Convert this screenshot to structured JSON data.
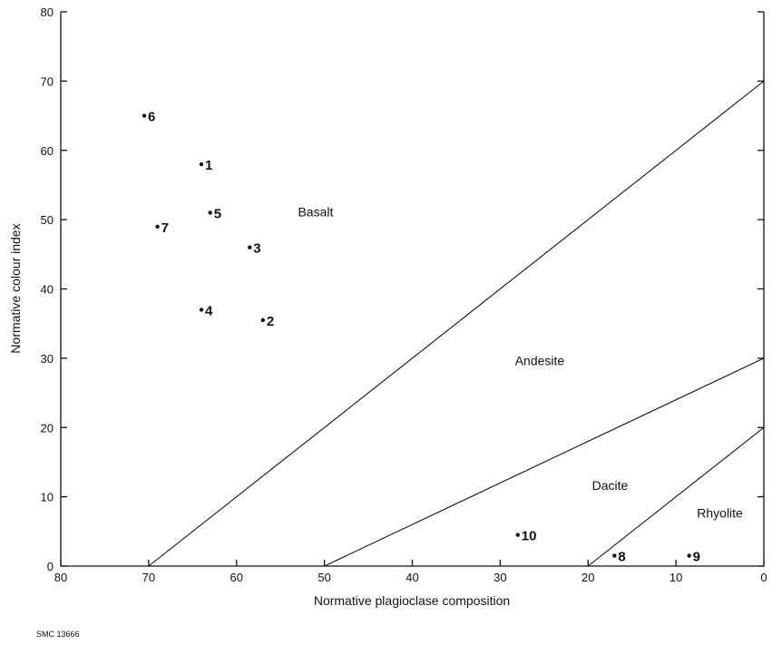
{
  "chart_data": {
    "type": "scatter",
    "title": "",
    "xlabel": "Normative plagioclase composition",
    "ylabel": "Normative colour index",
    "xlim": [
      80,
      0
    ],
    "ylim": [
      0,
      80
    ],
    "x_reversed": true,
    "x_ticks": [
      80,
      70,
      60,
      50,
      40,
      30,
      20,
      10,
      0
    ],
    "y_ticks": [
      0,
      10,
      20,
      30,
      40,
      50,
      60,
      70,
      80
    ],
    "grid": false,
    "points": [
      {
        "label": "1",
        "x": 64,
        "y": 58
      },
      {
        "label": "2",
        "x": 57,
        "y": 35.5
      },
      {
        "label": "3",
        "x": 58.5,
        "y": 46
      },
      {
        "label": "4",
        "x": 64,
        "y": 37
      },
      {
        "label": "5",
        "x": 63,
        "y": 51
      },
      {
        "label": "6",
        "x": 70.5,
        "y": 65
      },
      {
        "label": "7",
        "x": 69,
        "y": 49
      },
      {
        "label": "8",
        "x": 17,
        "y": 1.5
      },
      {
        "label": "9",
        "x": 8.5,
        "y": 1.5
      },
      {
        "label": "10",
        "x": 28,
        "y": 4.5
      }
    ],
    "boundaries": [
      {
        "from": [
          70,
          0
        ],
        "to": [
          0,
          70
        ]
      },
      {
        "from": [
          50,
          0
        ],
        "to": [
          0,
          30
        ]
      },
      {
        "from": [
          20,
          0
        ],
        "to": [
          0,
          20
        ]
      }
    ],
    "regions": [
      {
        "label": "Basalt",
        "x": 51,
        "y": 50.5
      },
      {
        "label": "Andesite",
        "x": 25.5,
        "y": 29
      },
      {
        "label": "Dacite",
        "x": 17.5,
        "y": 11
      },
      {
        "label": "Rhyolite",
        "x": 5,
        "y": 7
      }
    ]
  },
  "footer": "SMC 13666"
}
